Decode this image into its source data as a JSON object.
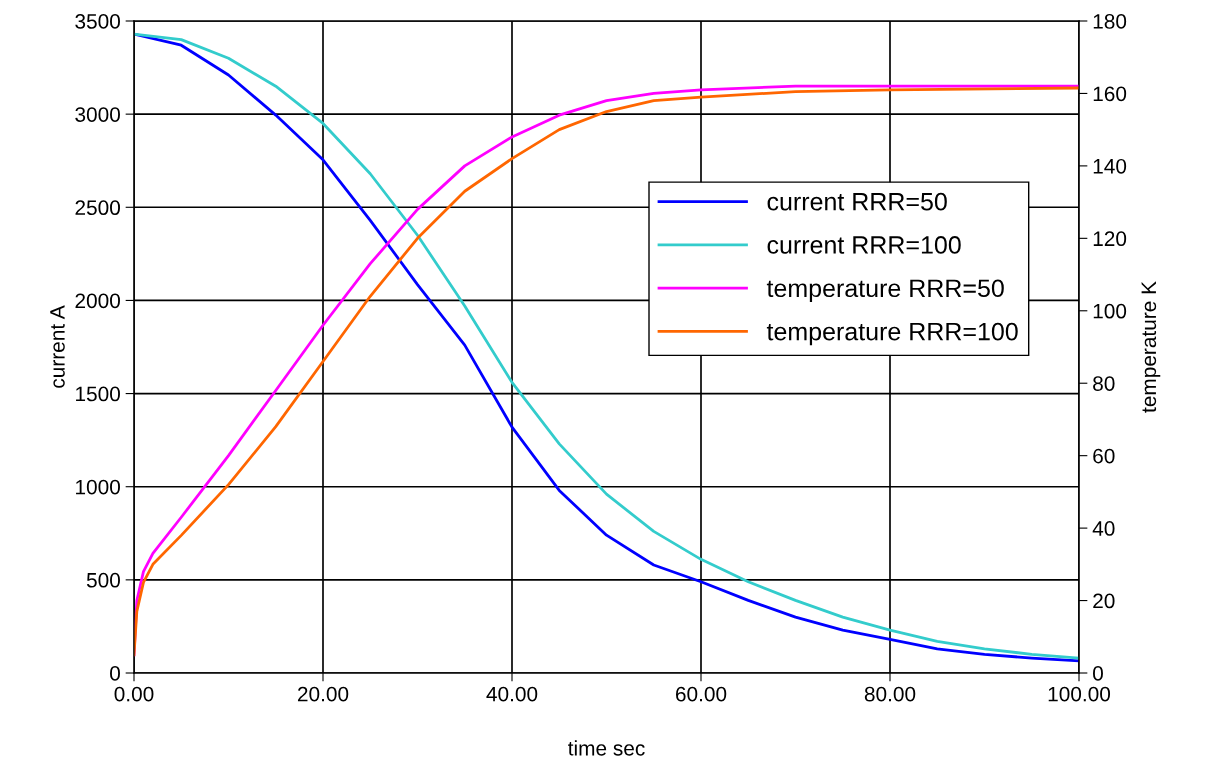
{
  "chart_data": {
    "type": "line",
    "xlabel": "time sec",
    "ylabel": "current A",
    "y2label": "temperature K",
    "xlim": [
      0,
      100
    ],
    "xticks": [
      {
        "value": 0,
        "label": "0.00"
      },
      {
        "value": 20,
        "label": "20.00"
      },
      {
        "value": 40,
        "label": "40.00"
      },
      {
        "value": 60,
        "label": "60.00"
      },
      {
        "value": 80,
        "label": "80.00"
      },
      {
        "value": 100,
        "label": "100.00"
      }
    ],
    "ylim": [
      0,
      3500
    ],
    "yticks": [
      0,
      500,
      1000,
      1500,
      2000,
      2500,
      3000,
      3500
    ],
    "y2lim": [
      0,
      180
    ],
    "y2ticks": [
      0,
      20,
      40,
      60,
      80,
      100,
      120,
      140,
      160,
      180
    ],
    "grid": true,
    "legend": "right",
    "marker": "none",
    "line_style": "solid",
    "series": [
      {
        "name": "current RRR=50",
        "color": "#0000ff",
        "x": [
          0,
          5,
          10,
          15,
          20,
          25,
          30,
          35,
          40,
          45,
          50,
          55,
          60,
          65,
          70,
          75,
          80,
          85,
          90,
          95,
          100
        ],
        "values": [
          3430,
          3370,
          3210,
          2995,
          2755,
          2430,
          2085,
          1760,
          1320,
          980,
          740,
          580,
          490,
          390,
          300,
          230,
          180,
          130,
          100,
          80,
          65
        ]
      },
      {
        "name": "current RRR=100",
        "color": "#33cccc",
        "x": [
          0,
          5,
          10,
          15,
          20,
          25,
          30,
          35,
          40,
          45,
          50,
          55,
          60,
          65,
          70,
          75,
          80,
          85,
          90,
          95,
          100
        ],
        "values": [
          3430,
          3400,
          3300,
          3150,
          2950,
          2680,
          2350,
          1970,
          1560,
          1230,
          960,
          760,
          610,
          490,
          390,
          300,
          230,
          170,
          130,
          100,
          80
        ]
      },
      {
        "name": "temperature RRR=50",
        "color": "#ff00ff",
        "axis": "y2",
        "x": [
          0,
          0.3,
          1,
          2,
          5,
          10,
          15,
          20,
          25,
          30,
          35,
          40,
          45,
          50,
          55,
          60,
          70,
          80,
          100
        ],
        "values": [
          5,
          20,
          28,
          33,
          43,
          60,
          78,
          96,
          113,
          128,
          140,
          148,
          154,
          158,
          160,
          161,
          162,
          162,
          162
        ]
      },
      {
        "name": "temperature RRR=100",
        "color": "#ff6600",
        "axis": "y2",
        "x": [
          0,
          0.3,
          1,
          2,
          5,
          10,
          15,
          20,
          25,
          30,
          35,
          40,
          45,
          50,
          55,
          60,
          70,
          80,
          100
        ],
        "values": [
          5,
          17,
          25,
          30,
          38,
          52,
          68,
          86,
          104,
          120,
          133,
          142,
          150,
          155,
          158,
          159,
          160.5,
          161,
          161.5
        ]
      }
    ]
  }
}
